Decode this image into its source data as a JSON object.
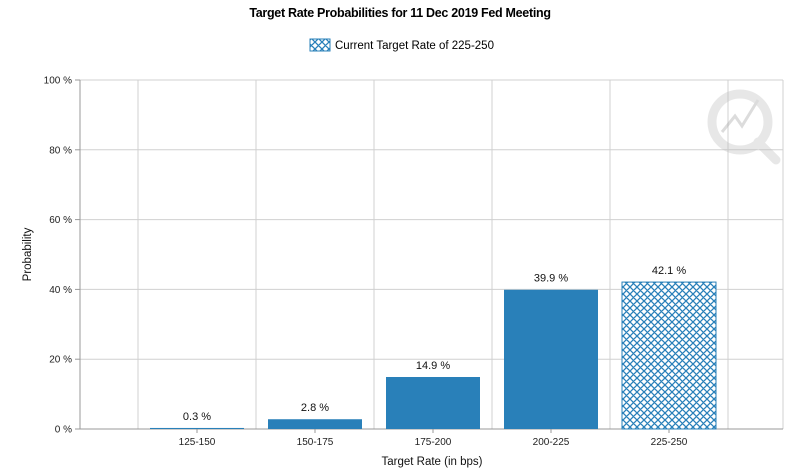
{
  "chart_data": {
    "type": "bar",
    "title": "Target Rate Probabilities for 11 Dec 2019 Fed Meeting",
    "legend": [
      "Current Target Rate of 225-250"
    ],
    "legend_placement": "top-center",
    "categories": [
      "125-150",
      "150-175",
      "175-200",
      "200-225",
      "225-250"
    ],
    "values": [
      0.3,
      2.8,
      14.9,
      39.9,
      42.1
    ],
    "data_labels": [
      "0.3 %",
      "2.8 %",
      "14.9 %",
      "39.9 %",
      "42.1 %"
    ],
    "highlighted_category": "225-250",
    "xlabel": "Target Rate (in bps)",
    "ylabel": "Probability",
    "ylim": [
      0,
      100
    ],
    "yticks": [
      0,
      20,
      40,
      60,
      80,
      100
    ],
    "ytick_labels": [
      "0 %",
      "20 %",
      "40 %",
      "60 %",
      "80 %",
      "100 %"
    ],
    "grid": true,
    "colors": {
      "bar": "#2980b9",
      "grid": "#d0d0d0",
      "axis": "#999999"
    }
  }
}
